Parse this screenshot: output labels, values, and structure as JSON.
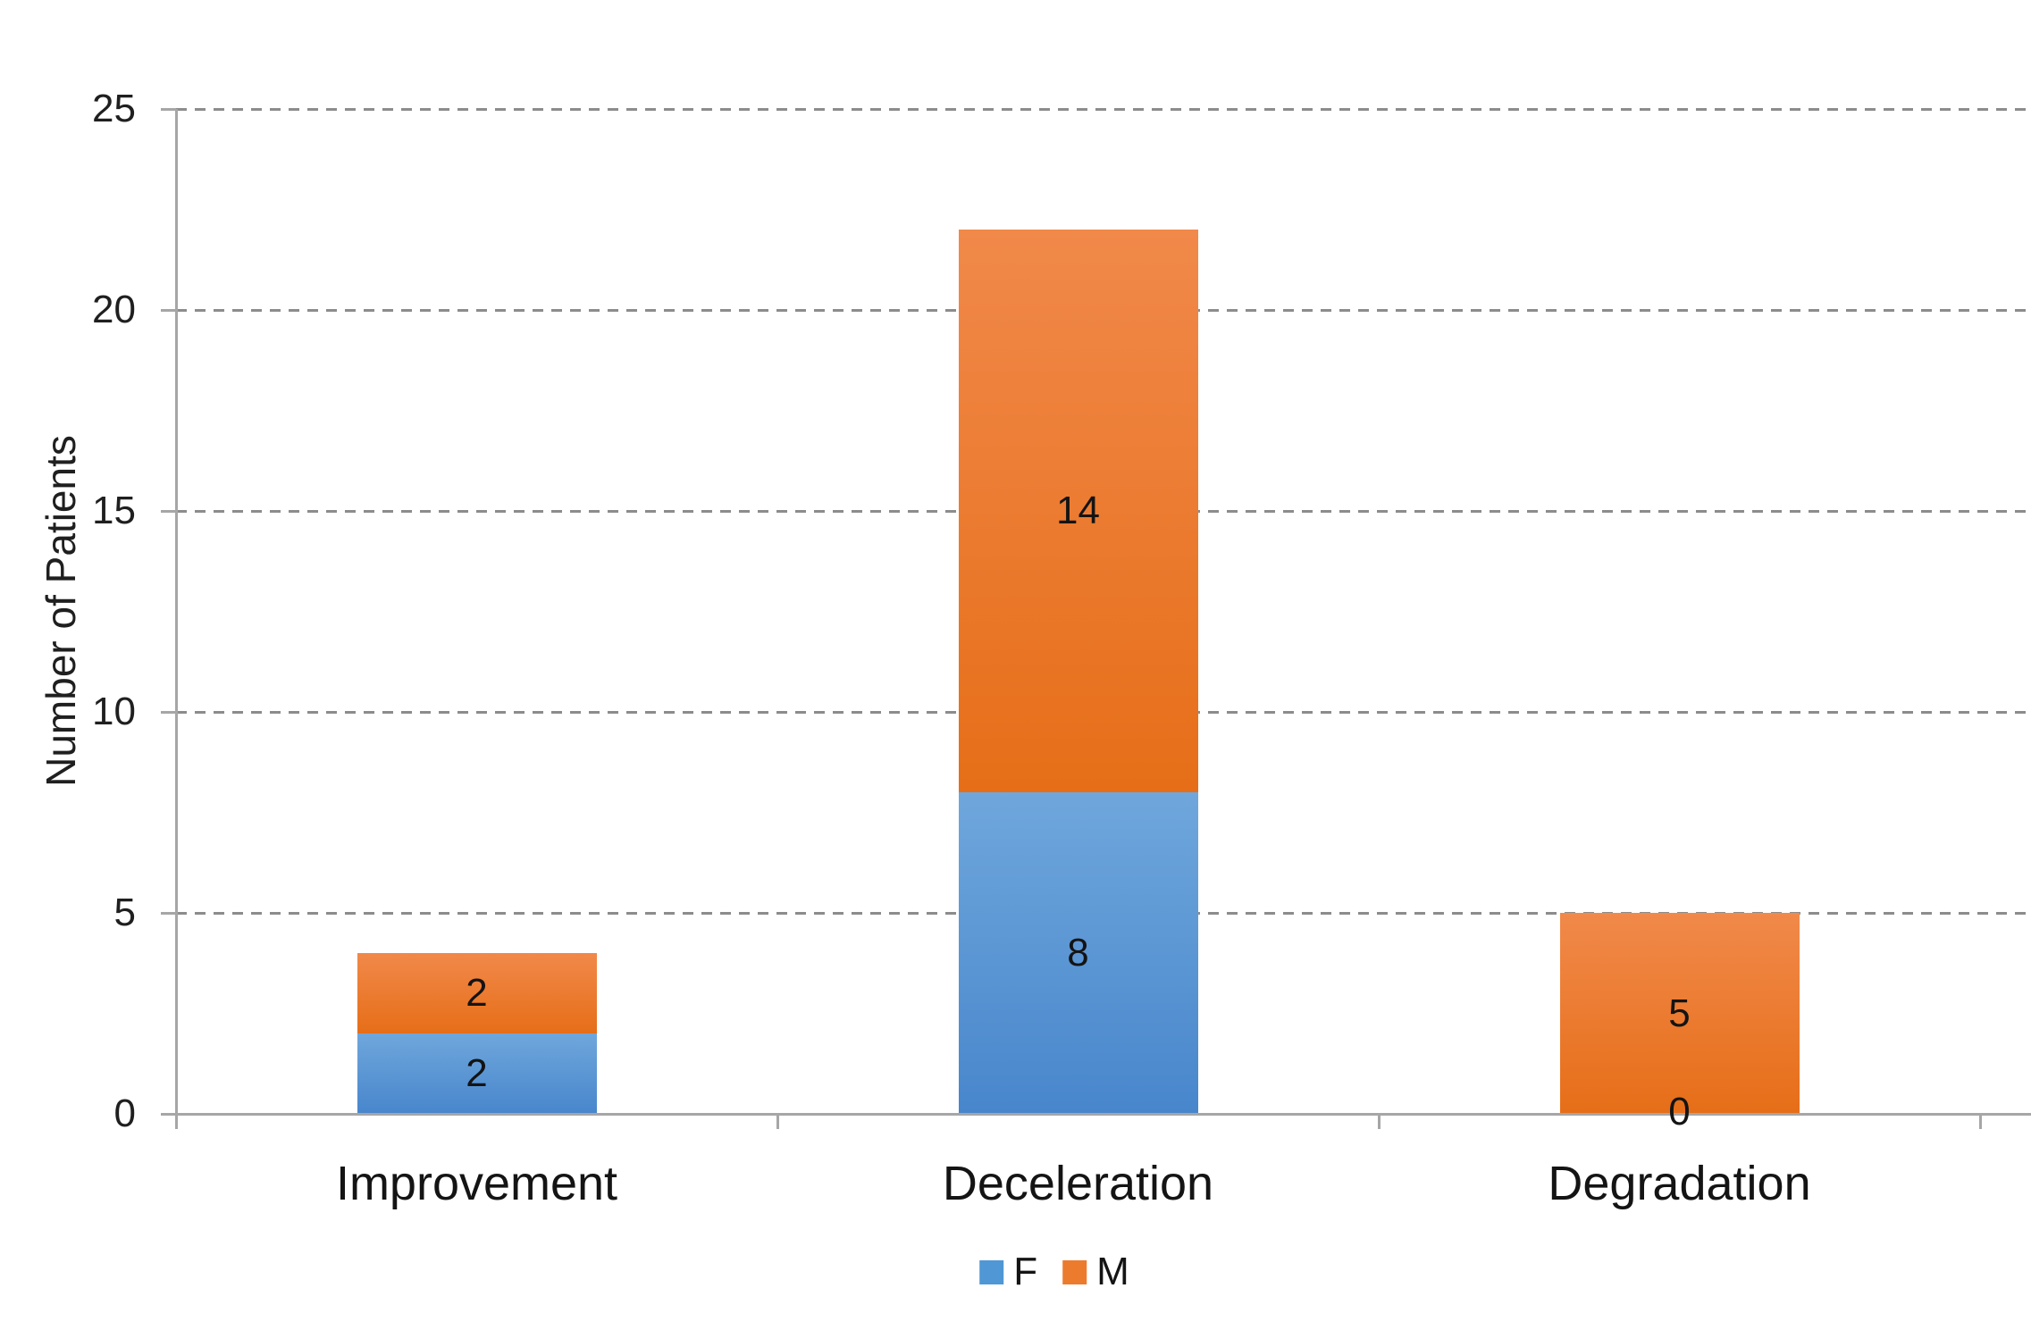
{
  "chart_data": {
    "type": "bar",
    "variant": "stacked-column",
    "title": "",
    "ylabel": "Number of Patients",
    "xlabel": "",
    "ylim": [
      0,
      25
    ],
    "yticks": [
      0,
      5,
      10,
      15,
      20,
      25
    ],
    "grid": "horizontal-dashed",
    "legend_position": "bottom-center",
    "categories": [
      "Improvement",
      "Deceleration",
      "Degradation"
    ],
    "series": [
      {
        "name": "F",
        "values": [
          2,
          8,
          0
        ],
        "color_top": "#6FA7DC",
        "color_bottom": "#4886CC",
        "legend_color": "#4F97D5"
      },
      {
        "name": "M",
        "values": [
          2,
          14,
          5
        ],
        "color_top": "#F1894A",
        "color_bottom": "#E66E18",
        "legend_color": "#EC7B2E"
      }
    ],
    "data_labels": [
      {
        "category": "Improvement",
        "F": "2",
        "M": "2"
      },
      {
        "category": "Deceleration",
        "F": "8",
        "M": "14"
      },
      {
        "category": "Degradation",
        "F": "0",
        "M": "5"
      }
    ],
    "colors": {
      "axis": "#A6A6A6",
      "grid": "#8C8C8C",
      "text": "#1F1F1F"
    }
  }
}
